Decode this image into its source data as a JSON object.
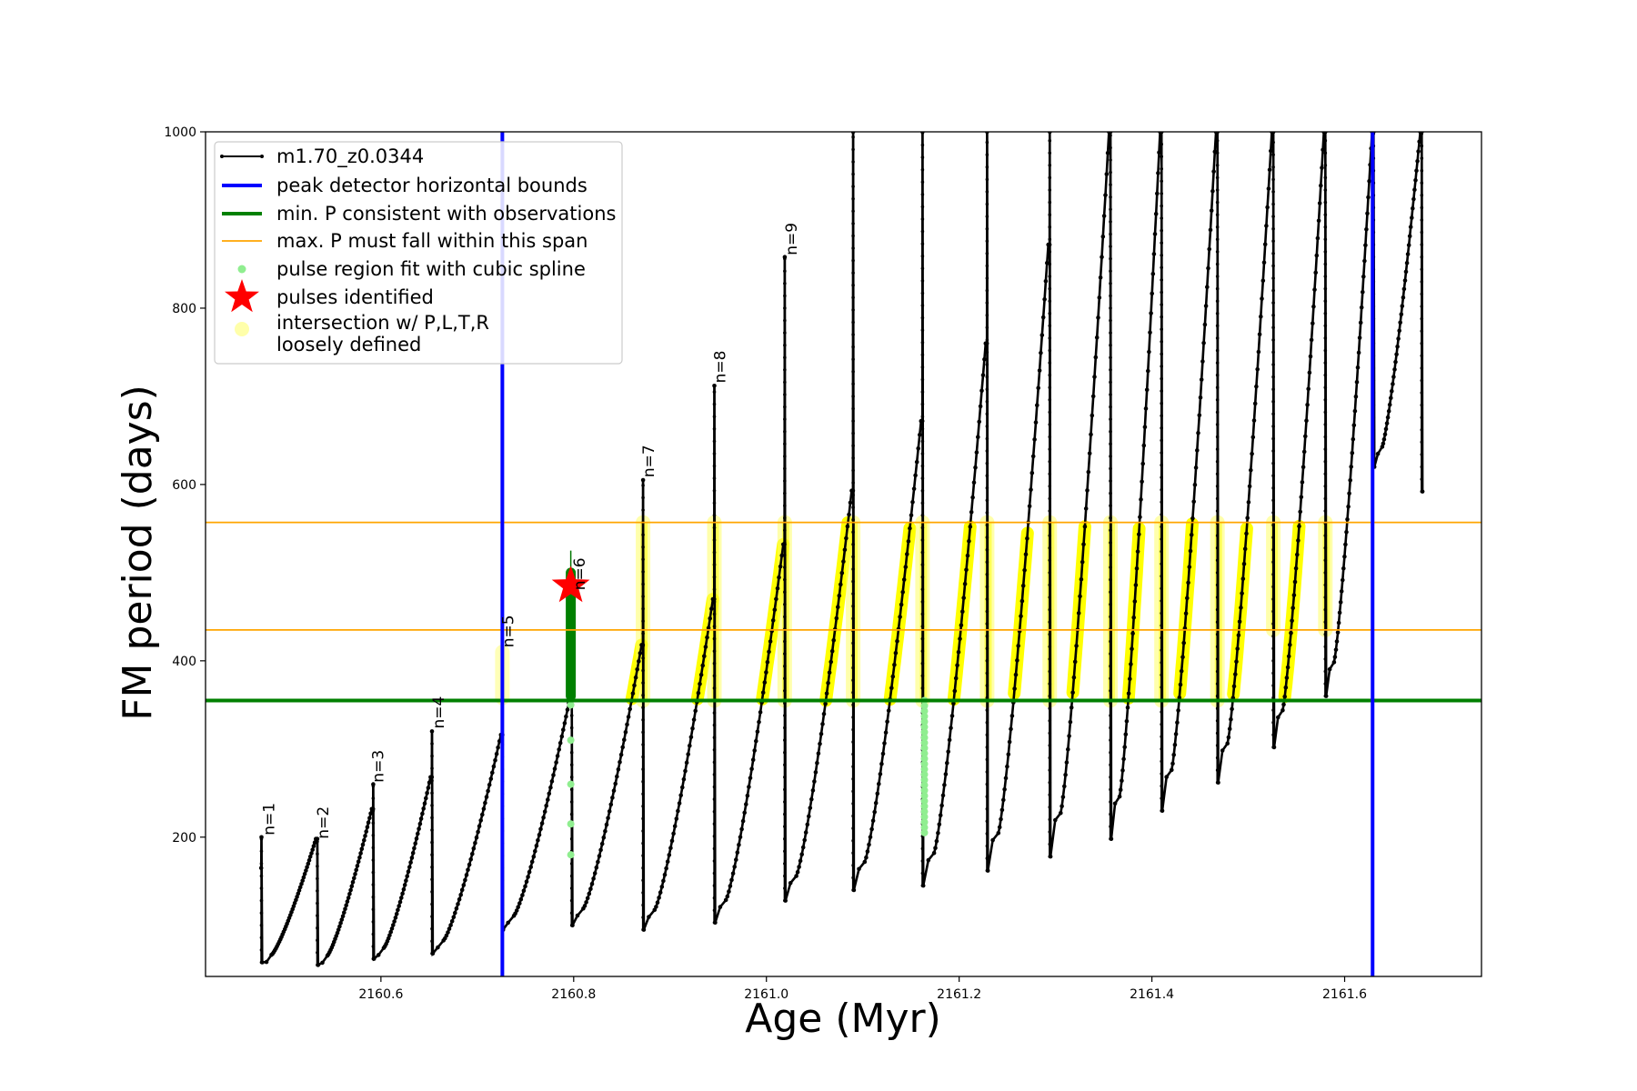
{
  "chart_data": {
    "type": "line",
    "xlabel": "Age (Myr)",
    "ylabel": "FM period (days)",
    "xlim": [
      2160.418,
      2161.742
    ],
    "ylim": [
      42,
      1000
    ],
    "xticks": [
      2160.6,
      2160.8,
      2161.0,
      2161.2,
      2161.4,
      2161.6
    ],
    "xtick_labels": [
      "2160.6",
      "2160.8",
      "2161.0",
      "2161.2",
      "2161.4",
      "2161.6"
    ],
    "yticks": [
      200,
      400,
      600,
      800,
      1000
    ],
    "ytick_labels": [
      "200",
      "400",
      "600",
      "800",
      "1000"
    ],
    "grid": false,
    "legend_position": "top-left",
    "legend": [
      {
        "label": "m1.70_z0.0344",
        "style": "black-line-dots"
      },
      {
        "label": "peak detector horizontal bounds",
        "style": "blue-thick-line"
      },
      {
        "label": "min. P consistent with observations",
        "style": "green-thick-line"
      },
      {
        "label": "max. P must fall within this span",
        "style": "orange-thin-line"
      },
      {
        "label": "pulse region fit with cubic spline",
        "style": "lightgreen-dot"
      },
      {
        "label": "pulses identified",
        "style": "red-star"
      },
      {
        "label": "intersection w/ P,L,T,R\nloosely defined",
        "style": "yellow-circle"
      }
    ],
    "vertical_bounds": [
      2160.726,
      2161.629
    ],
    "min_period": 355,
    "max_period_span": [
      435,
      557
    ],
    "pulse_identified": {
      "age": 2160.797,
      "period": 485
    },
    "pulse_labels": [
      {
        "text": "n=1",
        "age": 2160.478,
        "period": 202
      },
      {
        "text": "n=2",
        "age": 2160.534,
        "period": 198
      },
      {
        "text": "n=3",
        "age": 2160.591,
        "period": 262
      },
      {
        "text": "n=4",
        "age": 2160.654,
        "period": 323
      },
      {
        "text": "n=5",
        "age": 2160.726,
        "period": 415
      },
      {
        "text": "n=6",
        "age": 2160.8,
        "period": 480
      },
      {
        "text": "n=7",
        "age": 2160.872,
        "period": 608
      },
      {
        "text": "n=8",
        "age": 2160.946,
        "period": 715
      },
      {
        "text": "n=9",
        "age": 2161.02,
        "period": 860
      }
    ],
    "series": [
      {
        "name": "m1.70_z0.0344",
        "cycles": [
          {
            "pulse_age": 2160.476,
            "pre_period": 165,
            "spike": 200,
            "dip": 58,
            "next_age": 2160.534,
            "next_peak": 198
          },
          {
            "pulse_age": 2160.534,
            "pre_period": 198,
            "spike": 198,
            "dip": 55,
            "next_age": 2160.592,
            "next_peak": 232
          },
          {
            "pulse_age": 2160.592,
            "pre_period": 232,
            "spike": 260,
            "dip": 62,
            "next_age": 2160.653,
            "next_peak": 268
          },
          {
            "pulse_age": 2160.653,
            "pre_period": 268,
            "spike": 320,
            "dip": 68,
            "next_age": 2160.726,
            "next_peak": 316
          },
          {
            "pulse_age": 2160.726,
            "pre_period": 316,
            "spike": 316,
            "dip": 95,
            "next_age": 2160.798,
            "next_peak": 360
          },
          {
            "pulse_age": 2160.798,
            "pre_period": 360,
            "spike": 360,
            "dip": 100,
            "next_age": 2160.872,
            "next_peak": 418
          },
          {
            "pulse_age": 2160.872,
            "pre_period": 418,
            "spike": 605,
            "dip": 95,
            "next_age": 2160.946,
            "next_peak": 470
          },
          {
            "pulse_age": 2160.946,
            "pre_period": 470,
            "spike": 712,
            "dip": 103,
            "next_age": 2161.019,
            "next_peak": 532
          },
          {
            "pulse_age": 2161.019,
            "pre_period": 532,
            "spike": 858,
            "dip": 128,
            "next_age": 2161.09,
            "next_peak": 593
          },
          {
            "pulse_age": 2161.09,
            "pre_period": 593,
            "spike": 1000,
            "dip": 140,
            "next_age": 2161.162,
            "next_peak": 672
          },
          {
            "pulse_age": 2161.162,
            "pre_period": 672,
            "spike": 1000,
            "dip": 145,
            "next_age": 2161.229,
            "next_peak": 760
          },
          {
            "pulse_age": 2161.229,
            "pre_period": 760,
            "spike": 1000,
            "dip": 162,
            "next_age": 2161.294,
            "next_peak": 872
          },
          {
            "pulse_age": 2161.294,
            "pre_period": 872,
            "spike": 1000,
            "dip": 178,
            "next_age": 2161.357,
            "next_peak": 1000
          },
          {
            "pulse_age": 2161.357,
            "pre_period": 1000,
            "spike": 1000,
            "dip": 198,
            "next_age": 2161.41,
            "next_peak": 1000
          },
          {
            "pulse_age": 2161.41,
            "pre_period": 1000,
            "spike": 1000,
            "dip": 230,
            "next_age": 2161.468,
            "next_peak": 1000
          },
          {
            "pulse_age": 2161.468,
            "pre_period": 1000,
            "spike": 1000,
            "dip": 262,
            "next_age": 2161.526,
            "next_peak": 1000
          },
          {
            "pulse_age": 2161.526,
            "pre_period": 1000,
            "spike": 1000,
            "dip": 302,
            "next_age": 2161.58,
            "next_peak": 1000
          },
          {
            "pulse_age": 2161.58,
            "pre_period": 1000,
            "spike": 1000,
            "dip": 360,
            "next_age": 2161.63,
            "next_peak": 1000
          },
          {
            "pulse_age": 2161.63,
            "pre_period": 1000,
            "spike": 1000,
            "dip": 620,
            "next_age": 2161.68,
            "next_peak": 1000
          },
          {
            "pulse_age": 2161.68,
            "pre_period": 1000,
            "spike": 1000,
            "dip": 592,
            "next_age": null,
            "next_peak": null
          }
        ]
      }
    ]
  }
}
